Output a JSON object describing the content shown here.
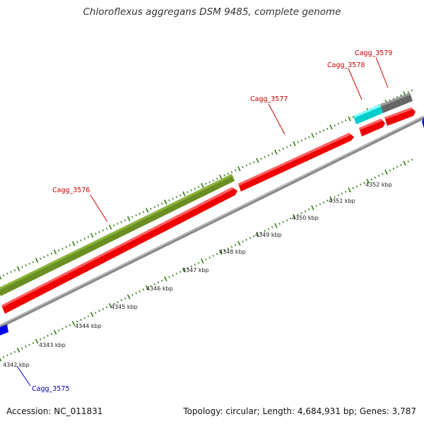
{
  "title": "Chloroflexus aggregans DSM 9485, complete genome",
  "footer": {
    "accession": "Accession: NC_011831",
    "summary": "Topology: circular; Length: 4,684,931 bp; Genes: 3,787"
  },
  "colors": {
    "backbone": "#9a9a9a",
    "gc_ticks": "#2e7d12",
    "forward_cds": "#ff0000",
    "reverse_cds": "#0000ff",
    "rna": "#6b8e23",
    "highlight": "#00cccc",
    "other": "#6e6e6e",
    "label_forward": "#cc0000",
    "label_reverse": "#0000aa"
  },
  "scale_labels": [
    "4342 kbp",
    "4343 kbp",
    "4344 kbp",
    "4345 kbp",
    "4346 kbp",
    "4347 kbp",
    "4348 kbp",
    "4349 kbp",
    "4350 kbp",
    "4351 kbp",
    "4352 kbp"
  ],
  "gene_labels": [
    {
      "text": "Cagg_3575",
      "strand": "reverse"
    },
    {
      "text": "Cagg_3576",
      "strand": "forward"
    },
    {
      "text": "Cagg_3577",
      "strand": "forward"
    },
    {
      "text": "Cagg_3578",
      "strand": "forward"
    },
    {
      "text": "Cagg_3579",
      "strand": "forward"
    }
  ]
}
